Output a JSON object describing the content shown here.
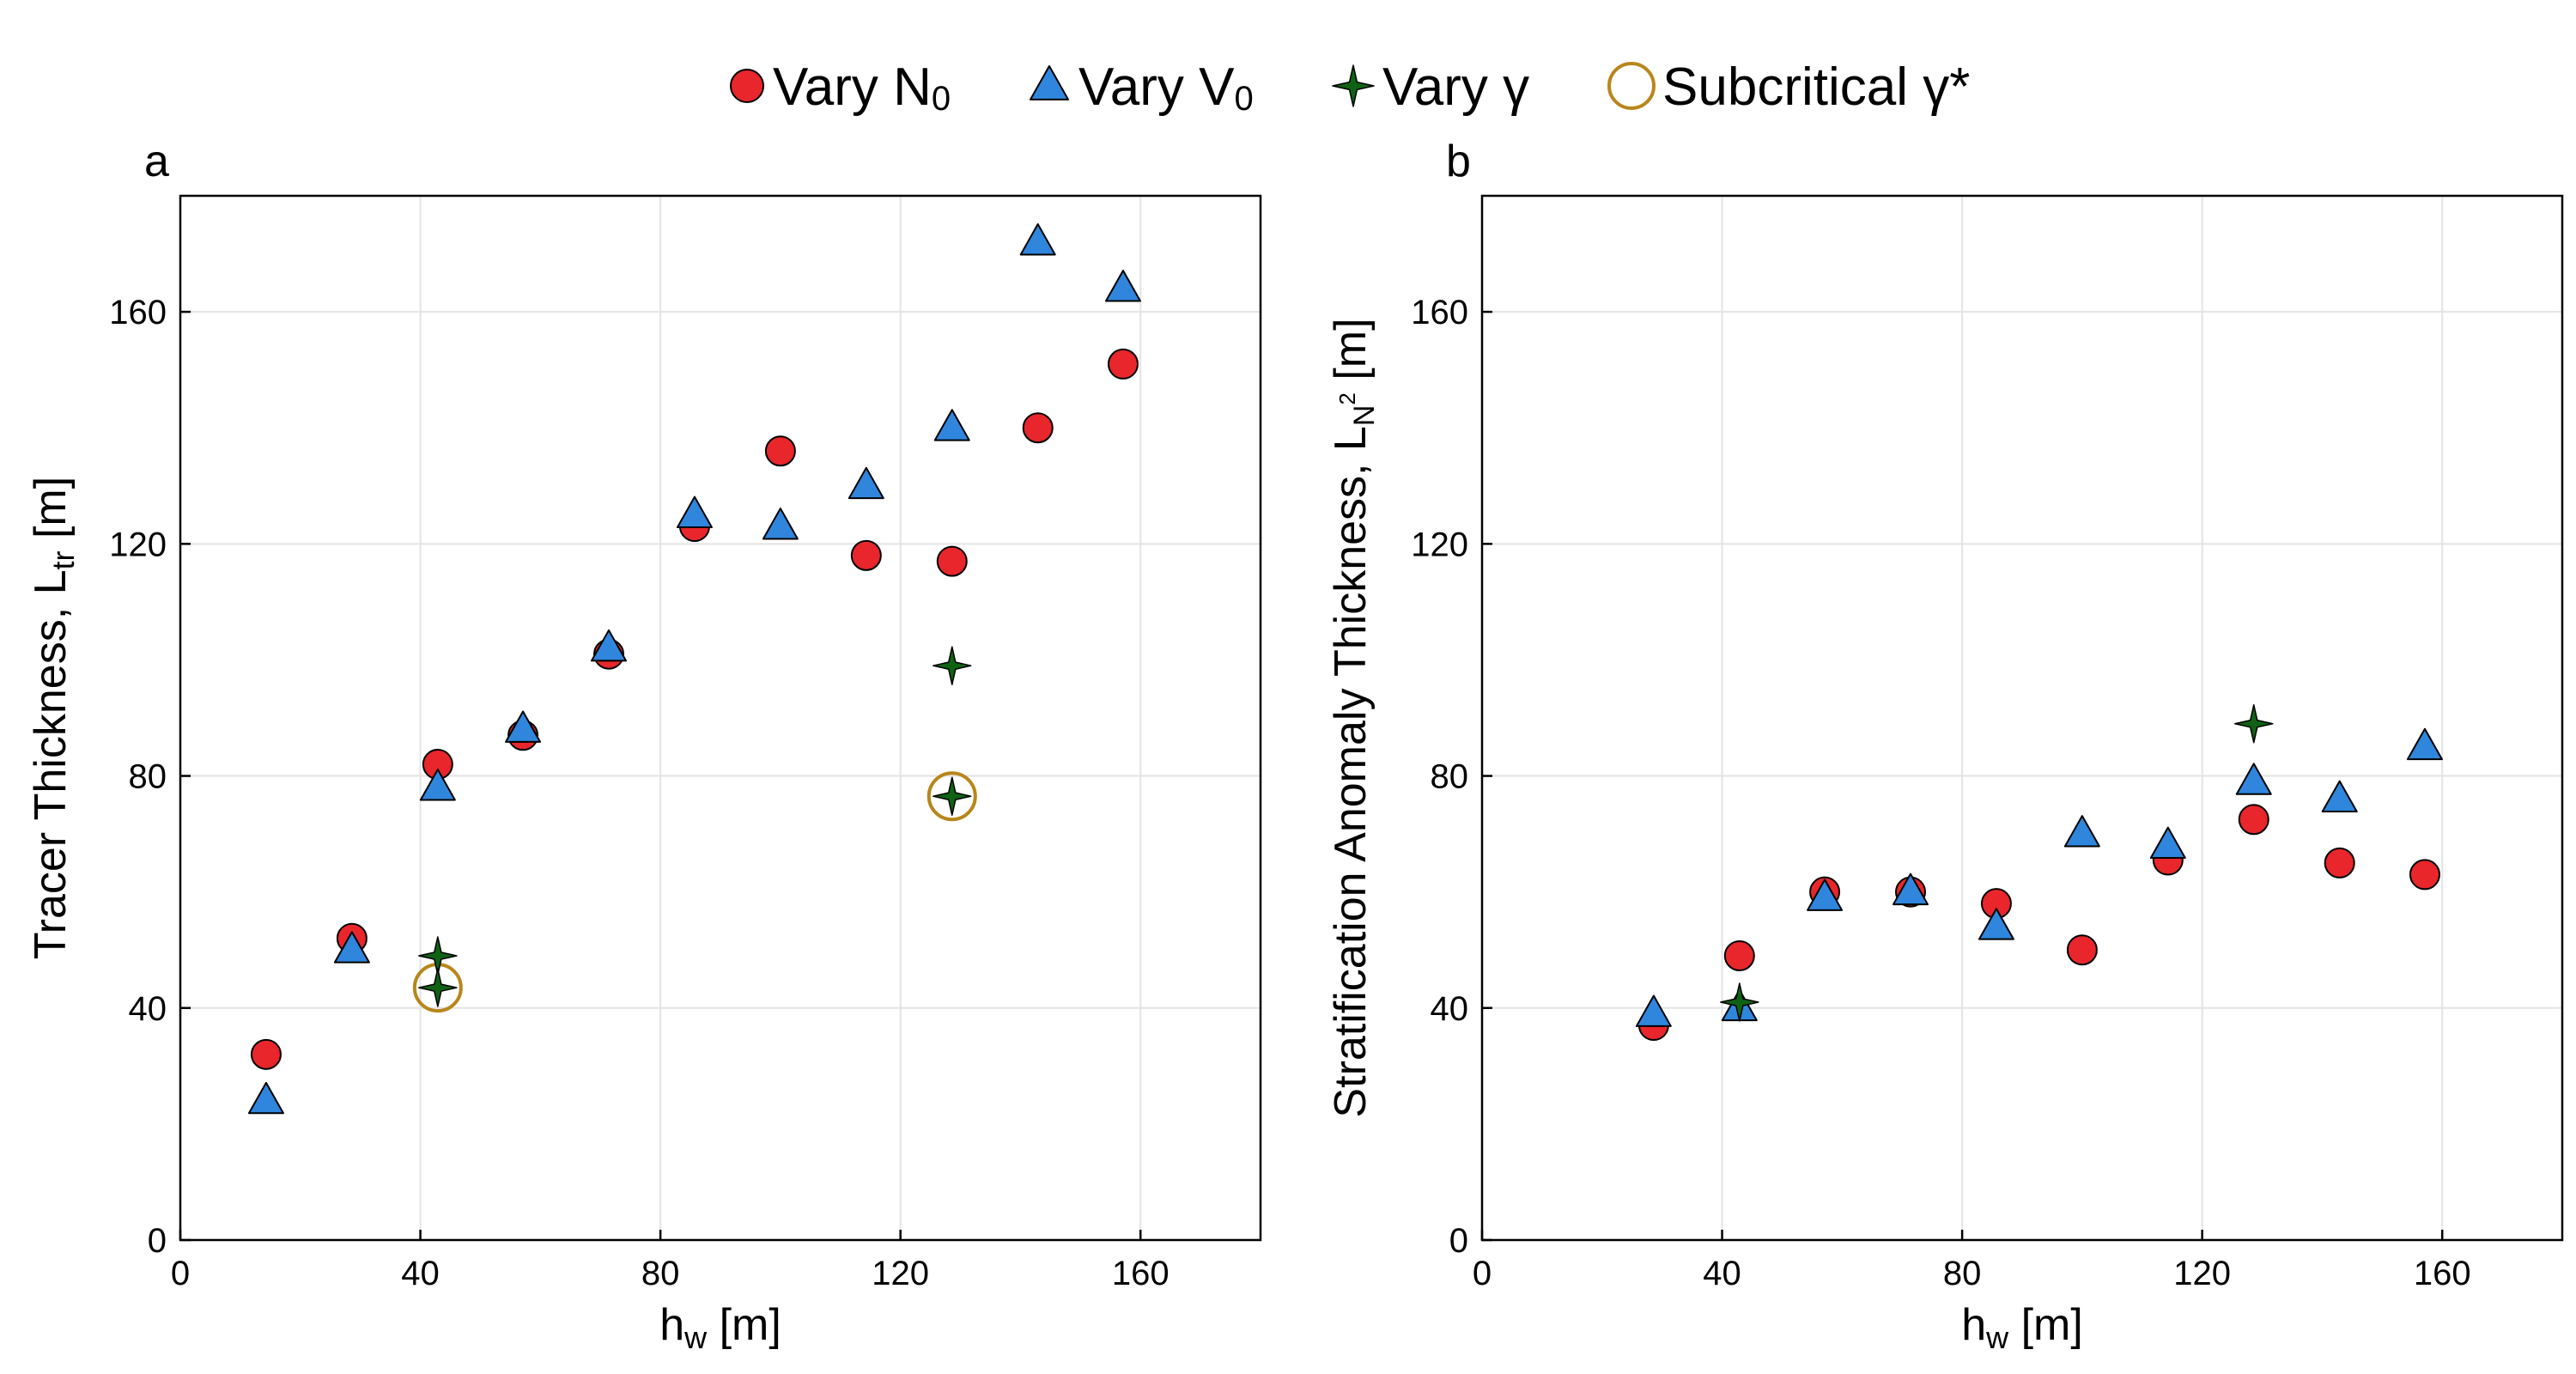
{
  "legend": {
    "items": [
      {
        "label_main": "Vary N",
        "label_sub": "0",
        "marker": "circle",
        "color": "#e8262b"
      },
      {
        "label_main": "Vary V",
        "label_sub": "0",
        "marker": "triangle",
        "color": "#2f86dc"
      },
      {
        "label_main": "Vary γ",
        "label_sub": "",
        "marker": "star",
        "color": "#0f6214"
      },
      {
        "label_main": "Subcritical γ*",
        "label_sub": "",
        "marker": "ring",
        "color": "#b8861b"
      }
    ]
  },
  "chart_data": [
    {
      "type": "scatter",
      "panel_label": "a",
      "xlabel": "h",
      "xlabel_sub": "w",
      "xlabel_unit": " [m]",
      "ylabel": "Tracer Thickness, L",
      "ylabel_sub": "tr",
      "ylabel_sup": "",
      "ylabel_unit": " [m]",
      "xlim": [
        0,
        180
      ],
      "ylim": [
        0,
        180
      ],
      "xticks": [
        0,
        40,
        80,
        120,
        160
      ],
      "yticks": [
        0,
        40,
        80,
        120,
        160
      ],
      "grid": true,
      "series": [
        {
          "name": "Vary N0",
          "marker": "circle",
          "color": "#e8262b",
          "x": [
            14.3,
            28.6,
            42.9,
            57.1,
            71.4,
            85.7,
            100.0,
            114.3,
            128.6,
            142.9,
            157.1
          ],
          "y": [
            32,
            52,
            82,
            87,
            101,
            123,
            136,
            118,
            117,
            140,
            151
          ]
        },
        {
          "name": "Vary V0",
          "marker": "triangle",
          "color": "#2f86dc",
          "x": [
            14.3,
            28.6,
            42.9,
            57.1,
            71.4,
            85.7,
            100.0,
            114.3,
            128.6,
            142.9,
            157.1
          ],
          "y": [
            24,
            50,
            78,
            88,
            102,
            125,
            123,
            130,
            140,
            172,
            164
          ]
        },
        {
          "name": "Vary γ",
          "marker": "star",
          "color": "#0f6214",
          "x": [
            42.9,
            42.9,
            128.6,
            128.6
          ],
          "y": [
            49,
            43.5,
            99,
            76.5
          ]
        },
        {
          "name": "Subcritical γ*",
          "marker": "ring",
          "color": "#b8861b",
          "x": [
            42.9,
            128.6
          ],
          "y": [
            43.5,
            76.5
          ]
        }
      ]
    },
    {
      "type": "scatter",
      "panel_label": "b",
      "xlabel": "h",
      "xlabel_sub": "w",
      "xlabel_unit": " [m]",
      "ylabel": "Stratification Anomaly Thickness, L",
      "ylabel_sub": "N",
      "ylabel_sup": "2",
      "ylabel_unit": " [m]",
      "xlim": [
        0,
        180
      ],
      "ylim": [
        0,
        180
      ],
      "xticks": [
        0,
        40,
        80,
        120,
        160
      ],
      "yticks": [
        0,
        40,
        80,
        120,
        160
      ],
      "grid": true,
      "series": [
        {
          "name": "Vary N0",
          "marker": "circle",
          "color": "#e8262b",
          "x": [
            28.6,
            42.9,
            57.1,
            71.4,
            85.7,
            100.0,
            114.3,
            128.6,
            142.9,
            157.1
          ],
          "y": [
            37,
            49,
            60,
            60,
            58,
            50,
            65.5,
            72.5,
            65,
            63
          ]
        },
        {
          "name": "Vary V0",
          "marker": "triangle",
          "color": "#2f86dc",
          "x": [
            28.6,
            42.9,
            57.1,
            71.4,
            85.7,
            100.0,
            114.3,
            128.6,
            142.9,
            157.1
          ],
          "y": [
            39,
            40,
            59,
            60,
            54,
            70,
            68,
            79,
            76,
            85
          ]
        },
        {
          "name": "Vary γ",
          "marker": "star",
          "color": "#0f6214",
          "x": [
            42.9,
            128.6
          ],
          "y": [
            41,
            89
          ]
        },
        {
          "name": "Subcritical γ*",
          "marker": "ring",
          "color": "#b8861b",
          "x": [],
          "y": []
        }
      ]
    }
  ]
}
